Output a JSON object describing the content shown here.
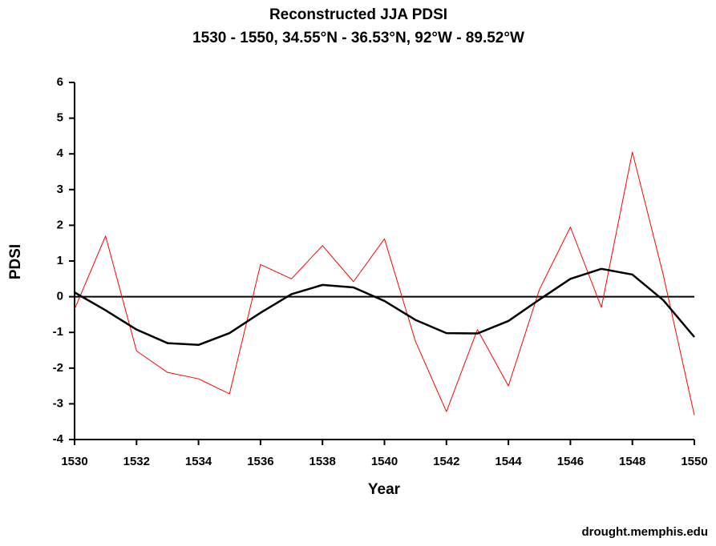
{
  "chart_data": {
    "type": "line",
    "title": "Reconstructed JJA PDSI",
    "subtitle": "1530 - 1550, 34.55°N - 36.53°N, 92°W - 89.52°W",
    "xlabel": "Year",
    "ylabel": "PDSI",
    "footer": "drought.memphis.edu",
    "x": [
      1530,
      1531,
      1532,
      1533,
      1534,
      1535,
      1536,
      1537,
      1538,
      1539,
      1540,
      1541,
      1542,
      1543,
      1544,
      1545,
      1546,
      1547,
      1548,
      1549,
      1550
    ],
    "series": [
      {
        "color": "#ff0000",
        "width": 1,
        "values": [
          -0.35,
          1.7,
          -1.52,
          -2.12,
          -2.3,
          -2.72,
          0.9,
          0.5,
          1.43,
          0.42,
          1.62,
          -1.25,
          -3.22,
          -0.92,
          -2.5,
          0.2,
          1.95,
          -0.3,
          4.05,
          0.6,
          -3.32
        ]
      },
      {
        "color": "#000000",
        "width": 2.5,
        "values": [
          0.12,
          -0.38,
          -0.92,
          -1.3,
          -1.35,
          -1.02,
          -0.45,
          0.07,
          0.33,
          0.26,
          -0.12,
          -0.65,
          -1.02,
          -1.03,
          -0.68,
          -0.08,
          0.5,
          0.78,
          0.62,
          -0.1,
          -1.13
        ]
      }
    ],
    "xlim": [
      1530,
      1550
    ],
    "xticks": [
      1530,
      1532,
      1534,
      1536,
      1538,
      1540,
      1542,
      1544,
      1546,
      1548,
      1550
    ],
    "ylim": [
      -4,
      6
    ],
    "yticks": [
      -4,
      -3,
      -2,
      -1,
      0,
      1,
      2,
      3,
      4,
      5,
      6
    ]
  }
}
